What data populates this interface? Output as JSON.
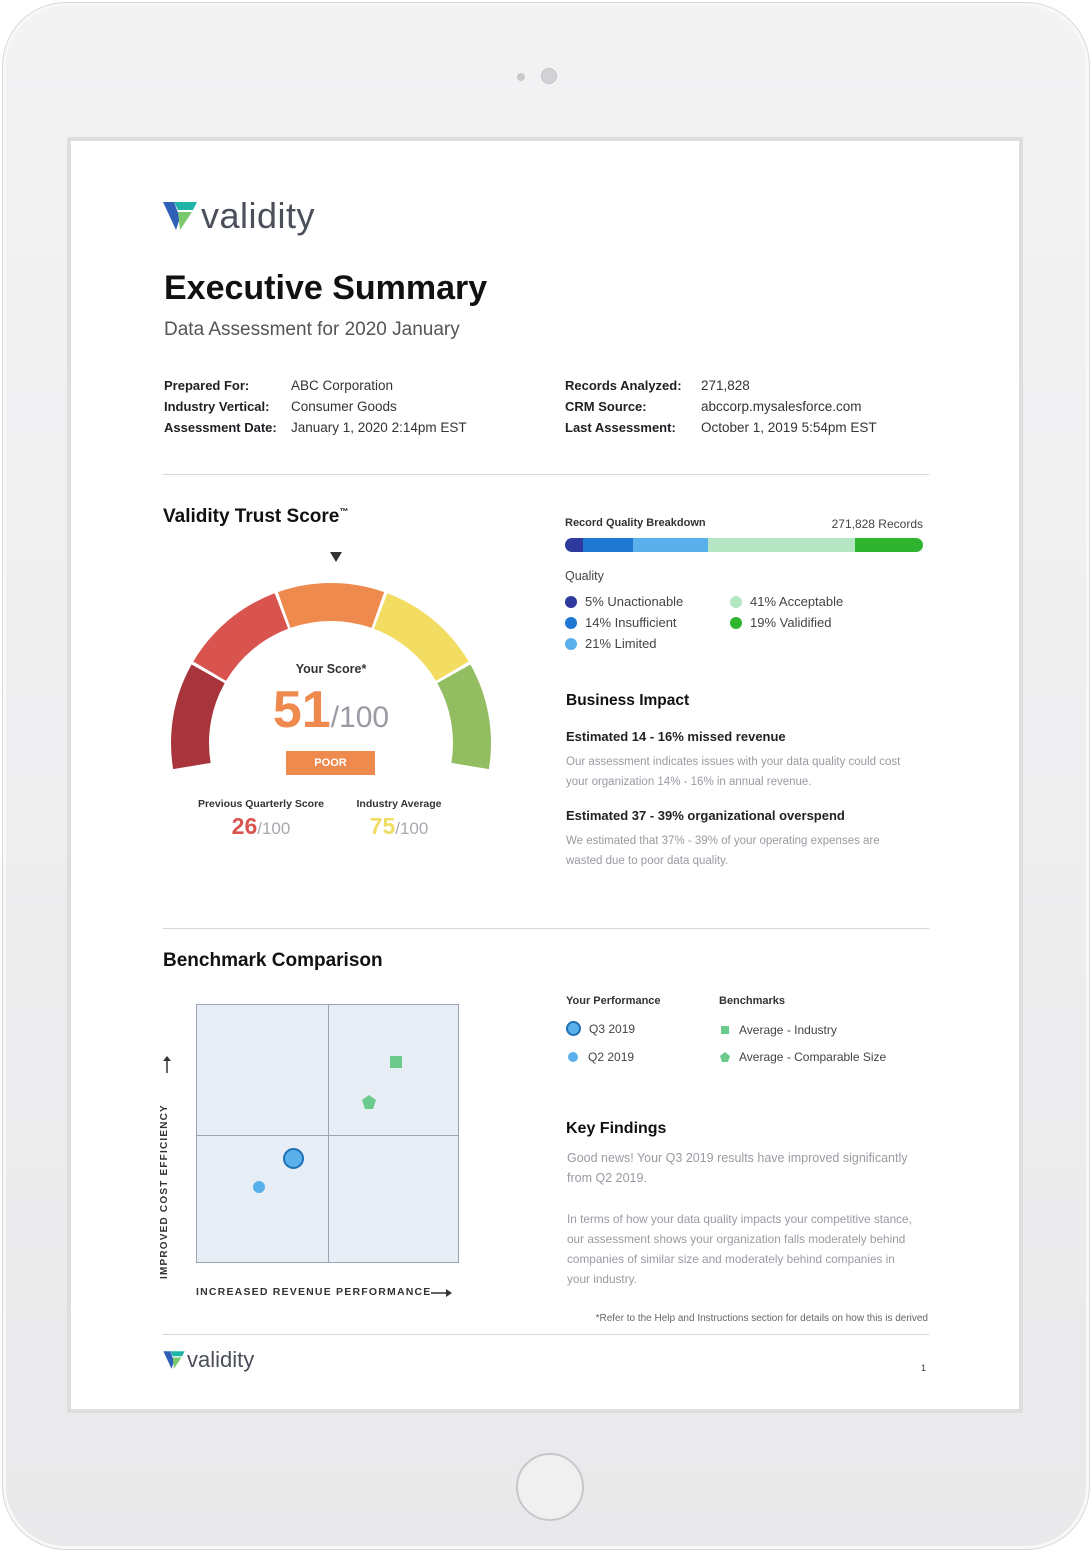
{
  "brand": {
    "name": "validity",
    "colors": {
      "teal": "#1fb5a6",
      "blue": "#2f5fb8",
      "green": "#7bc96f"
    }
  },
  "header": {
    "title": "Executive Summary",
    "subtitle": "Data Assessment for 2020 January"
  },
  "meta_left": [
    {
      "label": "Prepared For:",
      "value": "ABC Corporation"
    },
    {
      "label": "Industry Vertical:",
      "value": "Consumer Goods"
    },
    {
      "label": "Assessment Date:",
      "value": "January 1, 2020 2:14pm EST"
    }
  ],
  "meta_right": [
    {
      "label": "Records Analyzed:",
      "value": "271,828"
    },
    {
      "label": "CRM Source:",
      "value": "abccorp.mysalesforce.com"
    },
    {
      "label": "Last Assessment:",
      "value": "October 1, 2019 5:54pm EST"
    }
  ],
  "trust": {
    "title": "Validity Trust Score",
    "tm": "™",
    "your_score_label": "Your Score*",
    "score": "51",
    "score_max": "/100",
    "rating": "POOR",
    "previous_label": "Previous Quarterly Score",
    "previous_score": "26",
    "previous_max": "/100",
    "industry_label": "Industry Average",
    "industry_score": "75",
    "industry_max": "/100",
    "gauge_segments": [
      {
        "color": "#a8353c"
      },
      {
        "color": "#d9534f"
      },
      {
        "color": "#ee8a4e"
      },
      {
        "color": "#f2dc62"
      },
      {
        "color": "#93bd61"
      }
    ],
    "score_value": 51
  },
  "quality": {
    "title": "Record Quality Breakdown",
    "records": "271,828 Records",
    "section_label": "Quality",
    "items": [
      {
        "label": "5% Unactionable",
        "value": 5,
        "color": "#2f3a9e"
      },
      {
        "label": "14% Insufficient",
        "value": 14,
        "color": "#1f78d1"
      },
      {
        "label": "21% Limited",
        "value": 21,
        "color": "#5ab0ea"
      },
      {
        "label": "41% Acceptable",
        "value": 41,
        "color": "#b5e6c4"
      },
      {
        "label": "19% Validified",
        "value": 19,
        "color": "#2fb42f"
      }
    ]
  },
  "impact": {
    "title": "Business Impact",
    "items": [
      {
        "head": "Estimated 14 - 16% missed revenue",
        "text": "Our assessment indicates issues with your data quality could cost your organization 14% - 16% in annual revenue."
      },
      {
        "head": "Estimated 37 - 39% organizational overspend",
        "text": "We estimated that 37% - 39% of your operating expenses are wasted due to poor data quality."
      }
    ]
  },
  "benchmark": {
    "title": "Benchmark Comparison",
    "y_label": "IMPROVED COST EFFICIENCY",
    "x_label": "INCREASED REVENUE PERFORMANCE",
    "your_perf_label": "Your Performance",
    "benchmarks_label": "Benchmarks",
    "legend_q3": "Q3 2019",
    "legend_q2": "Q2 2019",
    "legend_industry": "Average - Industry",
    "legend_comparable": "Average - Comparable Size"
  },
  "findings": {
    "title": "Key Findings",
    "p1": "Good news! Your Q3 2019 results have improved significantly from Q2 2019.",
    "p2": "In terms of how your data quality impacts your competitive stance, our assessment shows your organization falls moderately behind companies of similar size and moderately behind companies in your industry."
  },
  "footer": {
    "note": "*Refer to the Help and Instructions section for details on how this is derived",
    "page": "1"
  }
}
